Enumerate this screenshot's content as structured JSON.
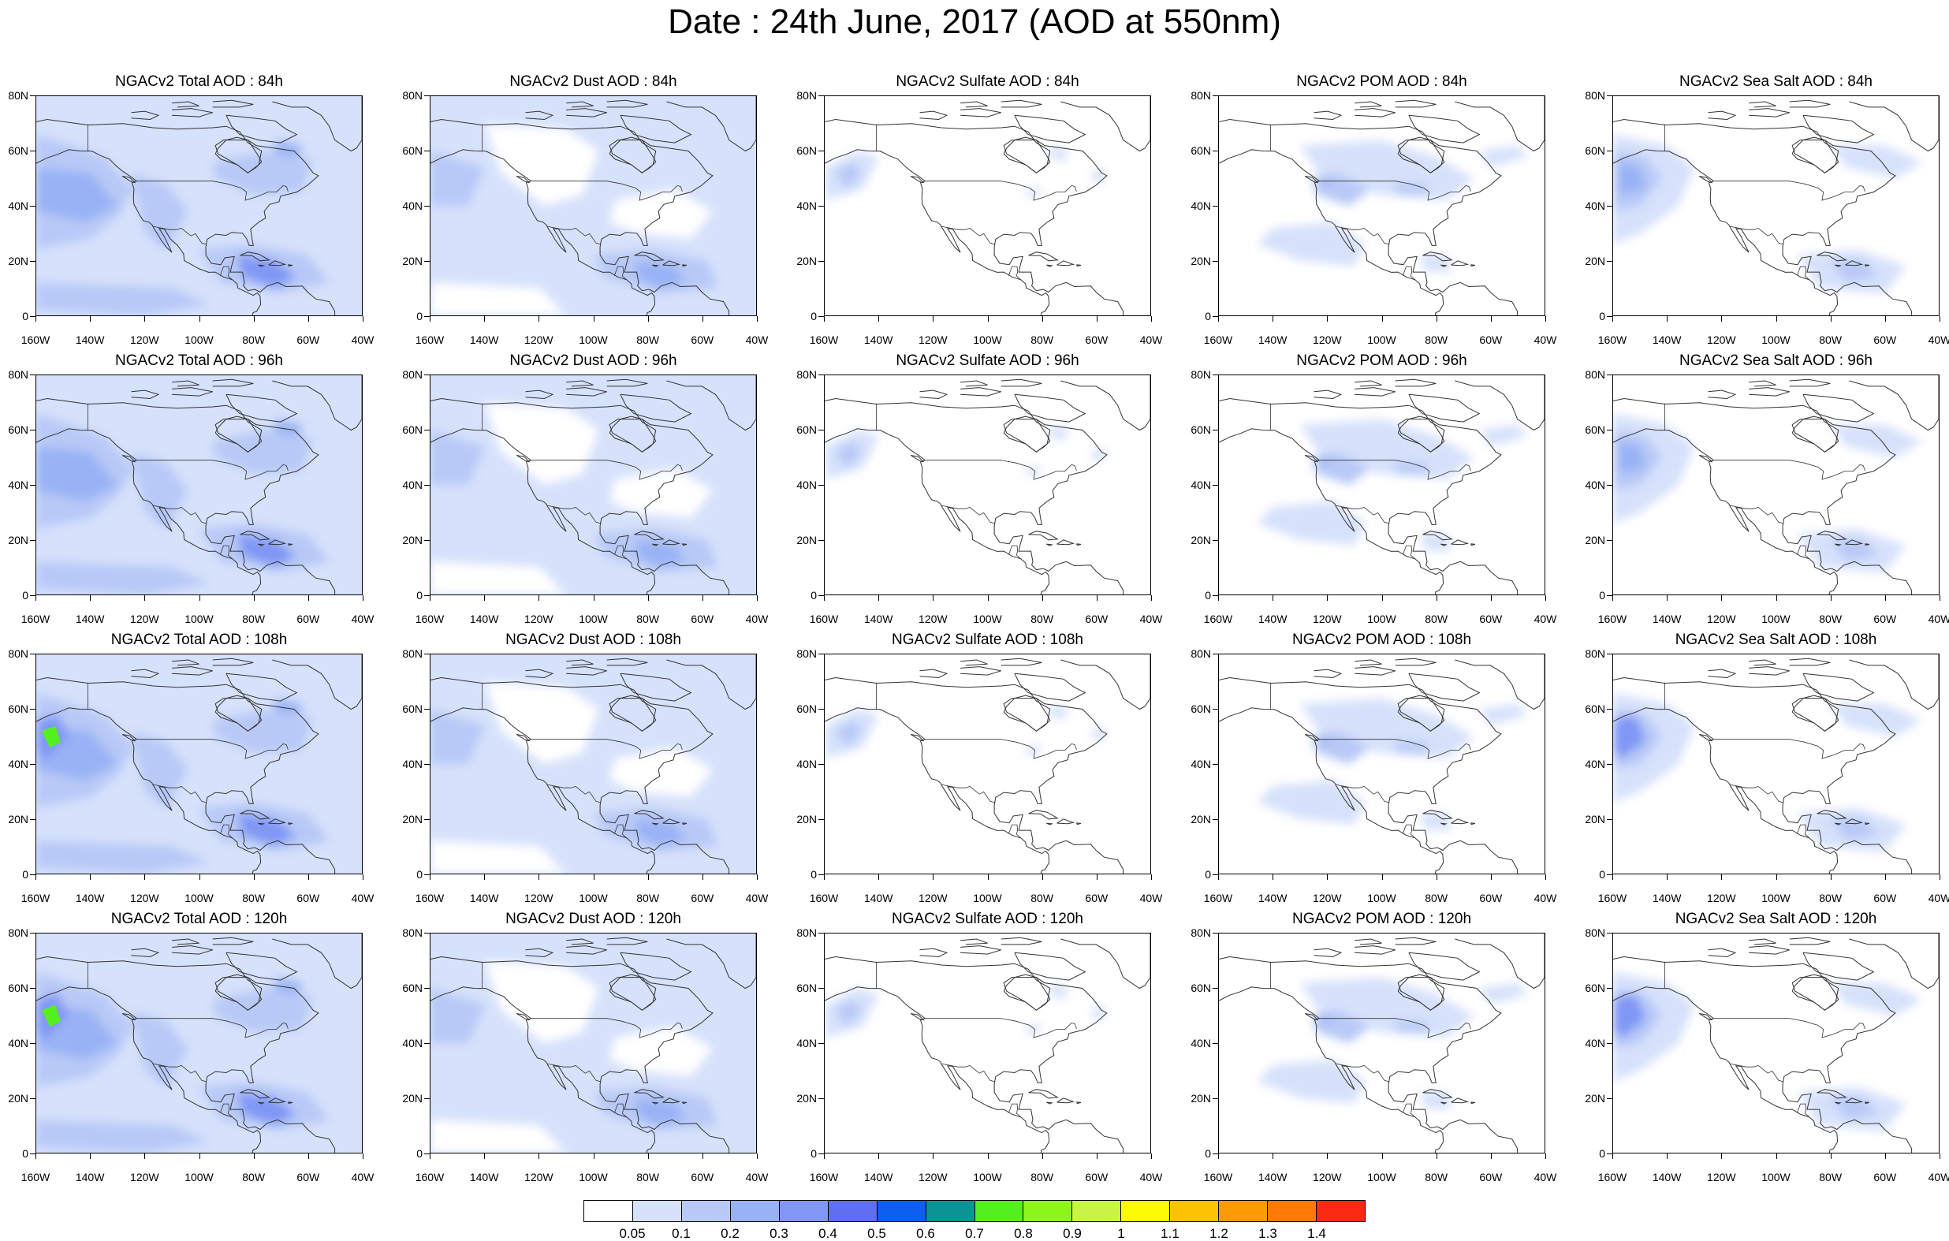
{
  "title": "Date : 24th June, 2017 (AOD at 550nm)",
  "rows": [
    {
      "panels": [
        "NGACv2 Total AOD : 84h",
        "NGACv2 Dust AOD : 84h",
        "NGACv2 Sulfate AOD : 84h",
        "NGACv2 POM AOD : 84h",
        "NGACv2 Sea Salt AOD : 84h"
      ]
    },
    {
      "panels": [
        "NGACv2 Total AOD : 96h",
        "NGACv2 Dust AOD : 96h",
        "NGACv2 Sulfate AOD : 96h",
        "NGACv2 POM AOD : 96h",
        "NGACv2 Sea Salt AOD : 96h"
      ]
    },
    {
      "panels": [
        "NGACv2 Total AOD : 108h",
        "NGACv2 Dust AOD : 108h",
        "NGACv2 Sulfate AOD : 108h",
        "NGACv2 POM AOD : 108h",
        "NGACv2 Sea Salt AOD : 108h"
      ]
    },
    {
      "panels": [
        "NGACv2 Total AOD : 120h",
        "NGACv2 Dust AOD : 120h",
        "NGACv2 Sulfate AOD : 120h",
        "NGACv2 POM AOD : 120h",
        "NGACv2 Sea Salt  AOD : 120h"
      ]
    }
  ],
  "axes": {
    "lat_labels": [
      "80N",
      "60N",
      "40N",
      "20N",
      "0"
    ],
    "lon_labels": [
      "160W",
      "140W",
      "120W",
      "100W",
      "80W",
      "60W",
      "40W"
    ]
  },
  "colorbar": {
    "labels": [
      "0.05",
      "0.1",
      "0.2",
      "0.3",
      "0.4",
      "0.5",
      "0.6",
      "0.7",
      "0.8",
      "0.9",
      "1",
      "1.1",
      "1.2",
      "1.3",
      "1.4"
    ],
    "colors": [
      "#ffffff",
      "#d6e1fb",
      "#b8c9f7",
      "#99b2f5",
      "#8097f5",
      "#5f6ff0",
      "#0e5ef0",
      "#0b9396",
      "#54ef1e",
      "#8ef51c",
      "#c8f545",
      "#fdfa05",
      "#fdc303",
      "#fd9b06",
      "#fd7a06",
      "#fc2a13"
    ]
  },
  "map_colors": {
    "coast": "#333333",
    "light": "#d6e1fb",
    "mid": "#b8c9f7",
    "strong": "#99b2f5",
    "deep": "#8097f5",
    "core": "#54ef1e"
  }
}
